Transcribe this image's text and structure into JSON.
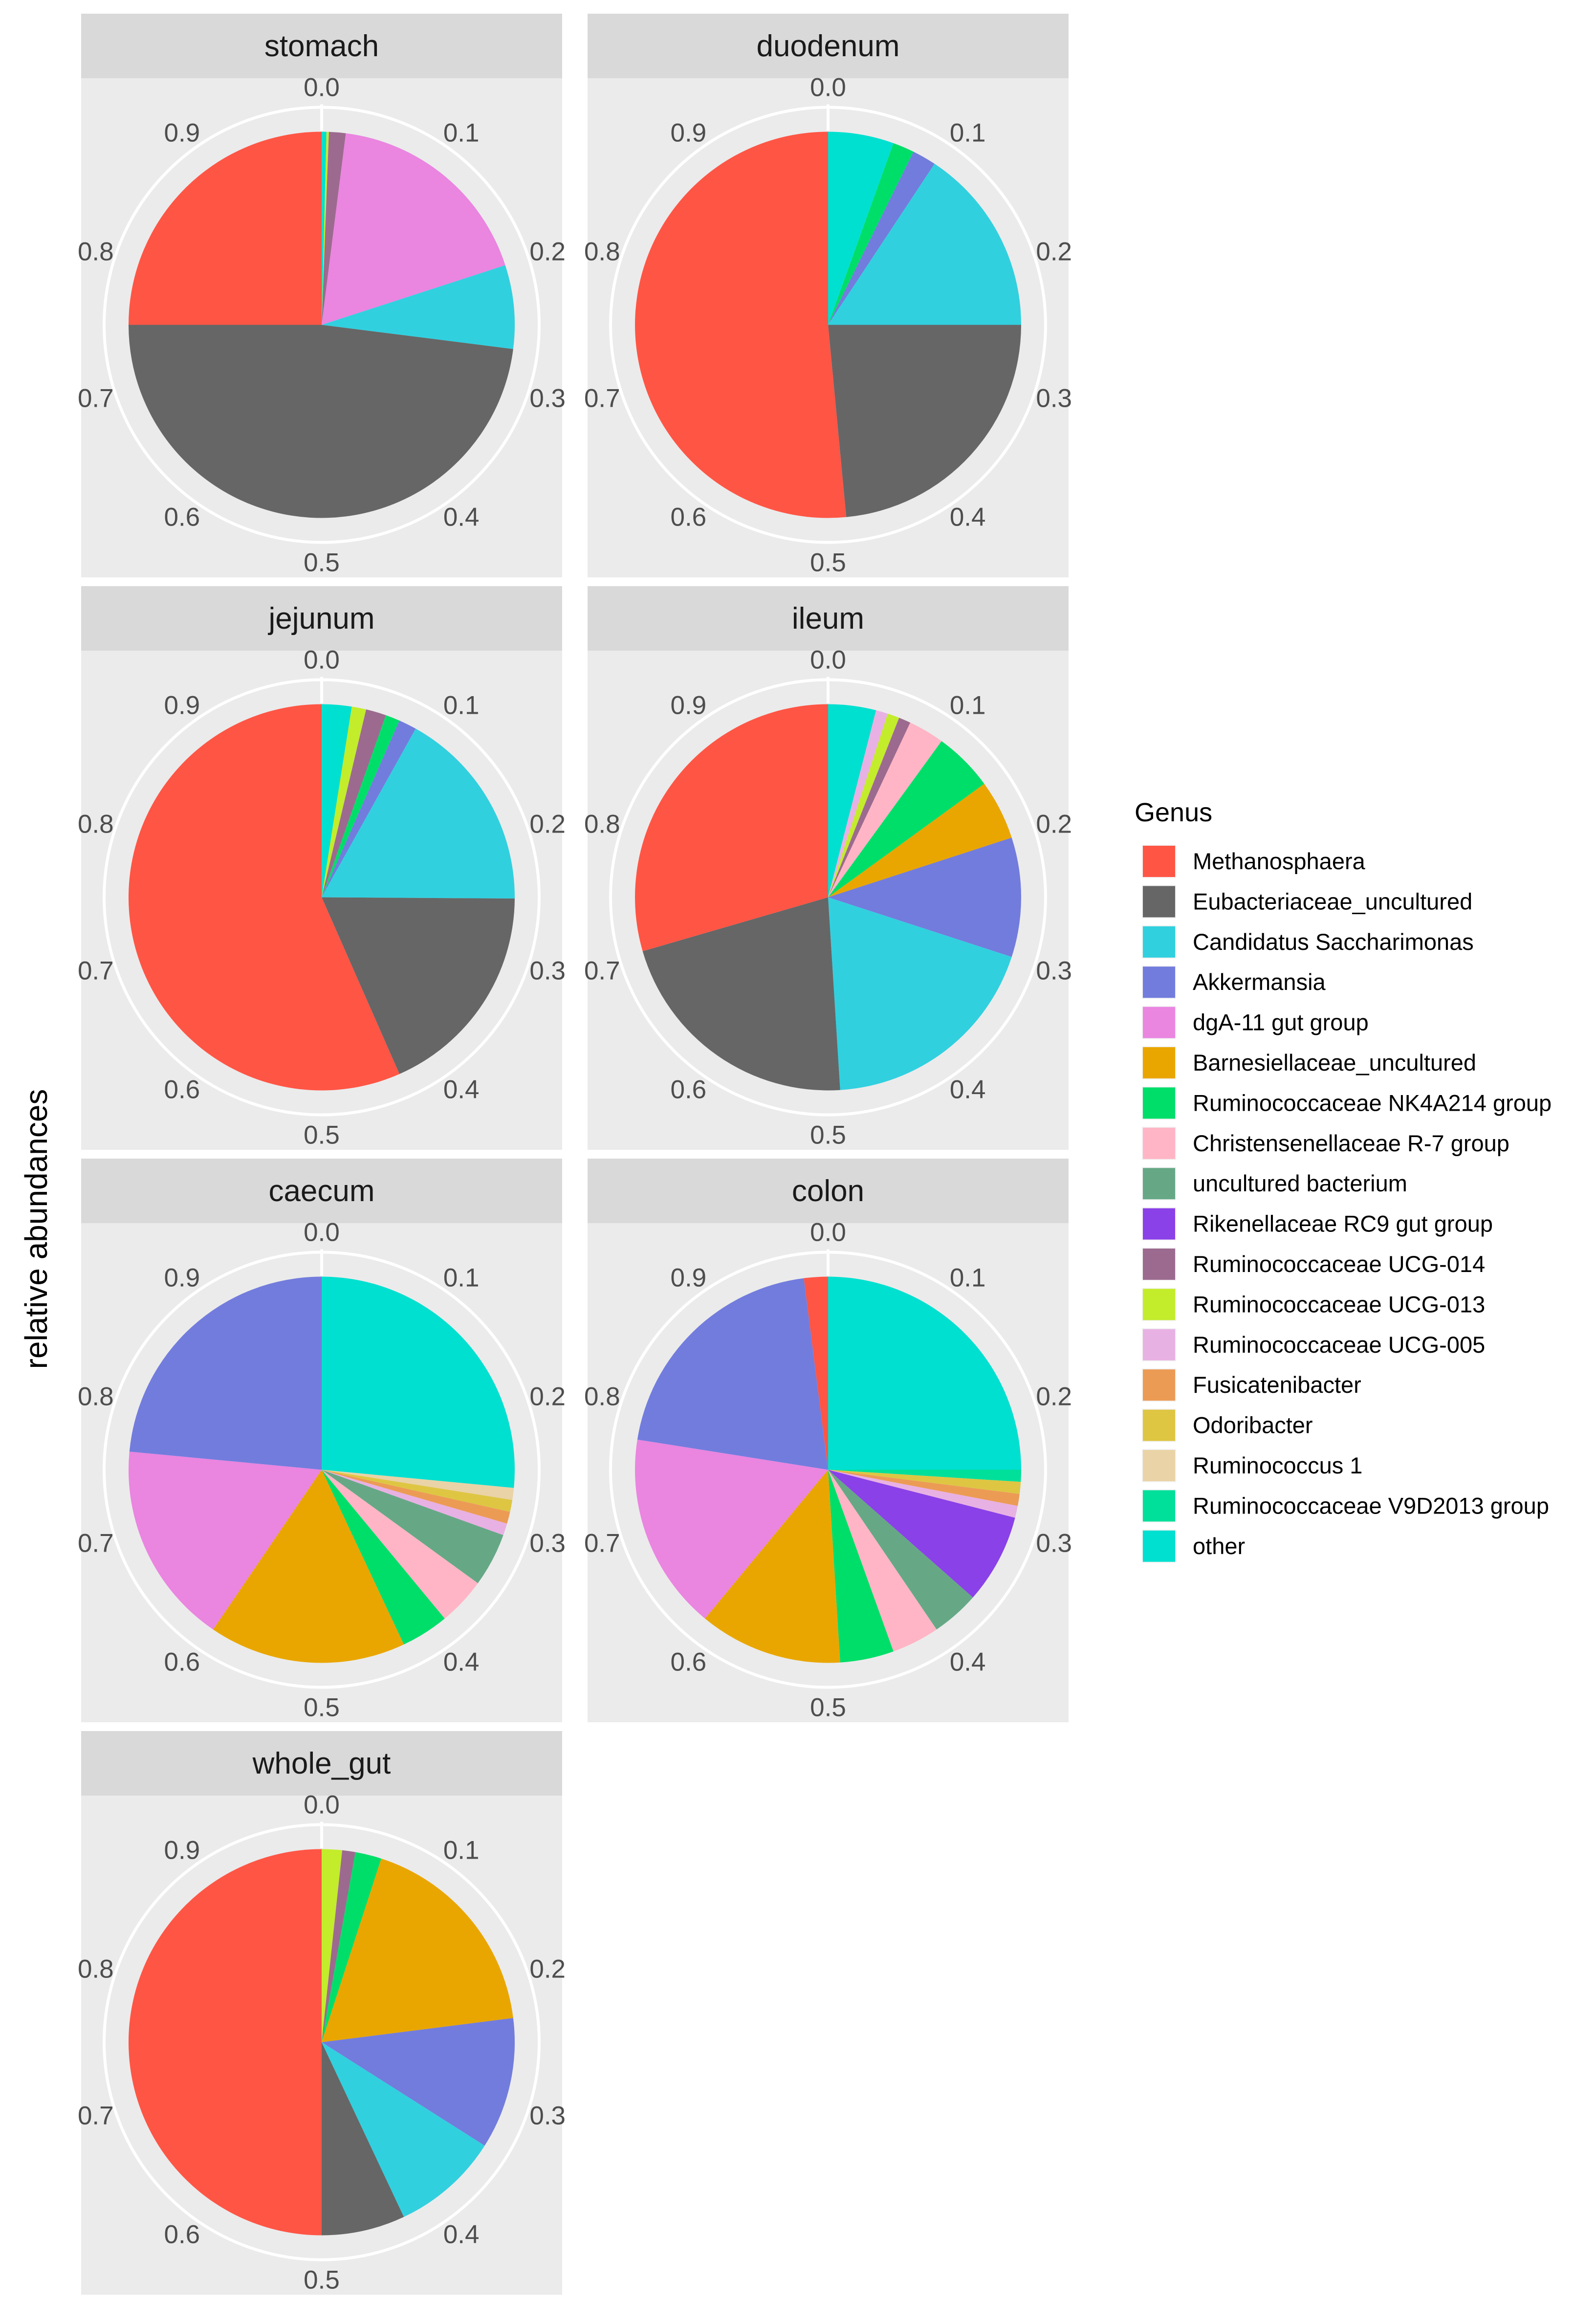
{
  "chart_data": {
    "type": "pie",
    "ylabel": "relative abundances",
    "theta_ticks": [
      "0.0",
      "0.1",
      "0.2",
      "0.3",
      "0.4",
      "0.5",
      "0.6",
      "0.7",
      "0.8",
      "0.9"
    ],
    "legend": {
      "title": "Genus",
      "position": "right",
      "entries": [
        {
          "name": "Methanosphaera",
          "color": "#FF5545"
        },
        {
          "name": "Eubacteriaceae_uncultured",
          "color": "#666666"
        },
        {
          "name": "Candidatus Saccharimonas",
          "color": "#31D0DF"
        },
        {
          "name": "Akkermansia",
          "color": "#727CDD"
        },
        {
          "name": "dgA-11 gut group",
          "color": "#EA85E0"
        },
        {
          "name": "Barnesiellaceae_uncultured",
          "color": "#E9A600"
        },
        {
          "name": "Ruminococcaceae NK4A214 group",
          "color": "#00DE6A"
        },
        {
          "name": "Christensenellaceae R-7 group",
          "color": "#FFB5C5"
        },
        {
          "name": "uncultured bacterium",
          "color": "#66A886"
        },
        {
          "name": "Rikenellaceae RC9 gut group",
          "color": "#8A41E8"
        },
        {
          "name": "Ruminococcaceae UCG-014",
          "color": "#9C6A8F"
        },
        {
          "name": "Ruminococcaceae UCG-013",
          "color": "#C3EC2B"
        },
        {
          "name": "Ruminococcaceae UCG-005",
          "color": "#E8B1E3"
        },
        {
          "name": "Fusicatenibacter",
          "color": "#EC9B55"
        },
        {
          "name": "Odoribacter",
          "color": "#DEC643"
        },
        {
          "name": "Ruminococcus 1",
          "color": "#EAD3A6"
        },
        {
          "name": "Ruminococcaceae V9D2013 group",
          "color": "#00E09A"
        },
        {
          "name": "other",
          "color": "#00E0D0"
        }
      ]
    },
    "panels": [
      {
        "title": "stomach",
        "slices": [
          {
            "genus": "other",
            "value": 0.004
          },
          {
            "genus": "Ruminococcaceae UCG-013",
            "value": 0.002
          },
          {
            "genus": "Ruminococcaceae UCG-014",
            "value": 0.014
          },
          {
            "genus": "dgA-11 gut group",
            "value": 0.18
          },
          {
            "genus": "Candidatus Saccharimonas",
            "value": 0.07
          },
          {
            "genus": "Eubacteriaceae_uncultured",
            "value": 0.48
          },
          {
            "genus": "Methanosphaera",
            "value": 0.25
          }
        ]
      },
      {
        "title": "duodenum",
        "slices": [
          {
            "genus": "other",
            "value": 0.055
          },
          {
            "genus": "Ruminococcaceae NK4A214 group",
            "value": 0.018
          },
          {
            "genus": "Akkermansia",
            "value": 0.02
          },
          {
            "genus": "Candidatus Saccharimonas",
            "value": 0.157
          },
          {
            "genus": "Eubacteriaceae_uncultured",
            "value": 0.235
          },
          {
            "genus": "Methanosphaera",
            "value": 0.515
          }
        ]
      },
      {
        "title": "jejunum",
        "slices": [
          {
            "genus": "other",
            "value": 0.025
          },
          {
            "genus": "Ruminococcaceae UCG-013",
            "value": 0.012
          },
          {
            "genus": "Ruminococcaceae UCG-014",
            "value": 0.017
          },
          {
            "genus": "Ruminococcaceae NK4A214 group",
            "value": 0.012
          },
          {
            "genus": "Akkermansia",
            "value": 0.015
          },
          {
            "genus": "Candidatus Saccharimonas",
            "value": 0.17
          },
          {
            "genus": "Eubacteriaceae_uncultured",
            "value": 0.183
          },
          {
            "genus": "Methanosphaera",
            "value": 0.566
          }
        ]
      },
      {
        "title": "ileum",
        "slices": [
          {
            "genus": "other",
            "value": 0.04
          },
          {
            "genus": "Ruminococcaceae UCG-005",
            "value": 0.01
          },
          {
            "genus": "Ruminococcaceae UCG-013",
            "value": 0.01
          },
          {
            "genus": "Ruminococcaceae UCG-014",
            "value": 0.01
          },
          {
            "genus": "Christensenellaceae R-7 group",
            "value": 0.03
          },
          {
            "genus": "Ruminococcaceae NK4A214 group",
            "value": 0.05
          },
          {
            "genus": "Barnesiellaceae_uncultured",
            "value": 0.05
          },
          {
            "genus": "Akkermansia",
            "value": 0.1
          },
          {
            "genus": "Candidatus Saccharimonas",
            "value": 0.19
          },
          {
            "genus": "Eubacteriaceae_uncultured",
            "value": 0.215
          },
          {
            "genus": "Methanosphaera",
            "value": 0.295
          }
        ]
      },
      {
        "title": "caecum",
        "slices": [
          {
            "genus": "other",
            "value": 0.265
          },
          {
            "genus": "Ruminococcus 1",
            "value": 0.01
          },
          {
            "genus": "Odoribacter",
            "value": 0.01
          },
          {
            "genus": "Fusicatenibacter",
            "value": 0.01
          },
          {
            "genus": "Ruminococcaceae UCG-005",
            "value": 0.01
          },
          {
            "genus": "uncultured bacterium",
            "value": 0.045
          },
          {
            "genus": "Christensenellaceae R-7 group",
            "value": 0.04
          },
          {
            "genus": "Ruminococcaceae NK4A214 group",
            "value": 0.04
          },
          {
            "genus": "Barnesiellaceae_uncultured",
            "value": 0.165
          },
          {
            "genus": "dgA-11 gut group",
            "value": 0.17
          },
          {
            "genus": "Akkermansia",
            "value": 0.235
          }
        ]
      },
      {
        "title": "colon",
        "slices": [
          {
            "genus": "other",
            "value": 0.25
          },
          {
            "genus": "Ruminococcaceae V9D2013 group",
            "value": 0.01
          },
          {
            "genus": "Odoribacter",
            "value": 0.01
          },
          {
            "genus": "Fusicatenibacter",
            "value": 0.01
          },
          {
            "genus": "Ruminococcaceae UCG-005",
            "value": 0.01
          },
          {
            "genus": "Rikenellaceae RC9 gut group",
            "value": 0.075
          },
          {
            "genus": "uncultured bacterium",
            "value": 0.04
          },
          {
            "genus": "Christensenellaceae R-7 group",
            "value": 0.04
          },
          {
            "genus": "Ruminococcaceae NK4A214 group",
            "value": 0.045
          },
          {
            "genus": "Barnesiellaceae_uncultured",
            "value": 0.12
          },
          {
            "genus": "dgA-11 gut group",
            "value": 0.165
          },
          {
            "genus": "Akkermansia",
            "value": 0.205
          },
          {
            "genus": "Methanosphaera",
            "value": 0.02
          }
        ]
      },
      {
        "title": "whole_gut",
        "slices": [
          {
            "genus": "Ruminococcaceae UCG-013",
            "value": 0.017
          },
          {
            "genus": "Ruminococcaceae UCG-014",
            "value": 0.011
          },
          {
            "genus": "Ruminococcaceae NK4A214 group",
            "value": 0.022
          },
          {
            "genus": "Barnesiellaceae_uncultured",
            "value": 0.18
          },
          {
            "genus": "Akkermansia",
            "value": 0.11
          },
          {
            "genus": "Candidatus Saccharimonas",
            "value": 0.09
          },
          {
            "genus": "Eubacteriaceae_uncultured",
            "value": 0.07
          },
          {
            "genus": "Methanosphaera",
            "value": 0.5
          }
        ]
      }
    ]
  }
}
